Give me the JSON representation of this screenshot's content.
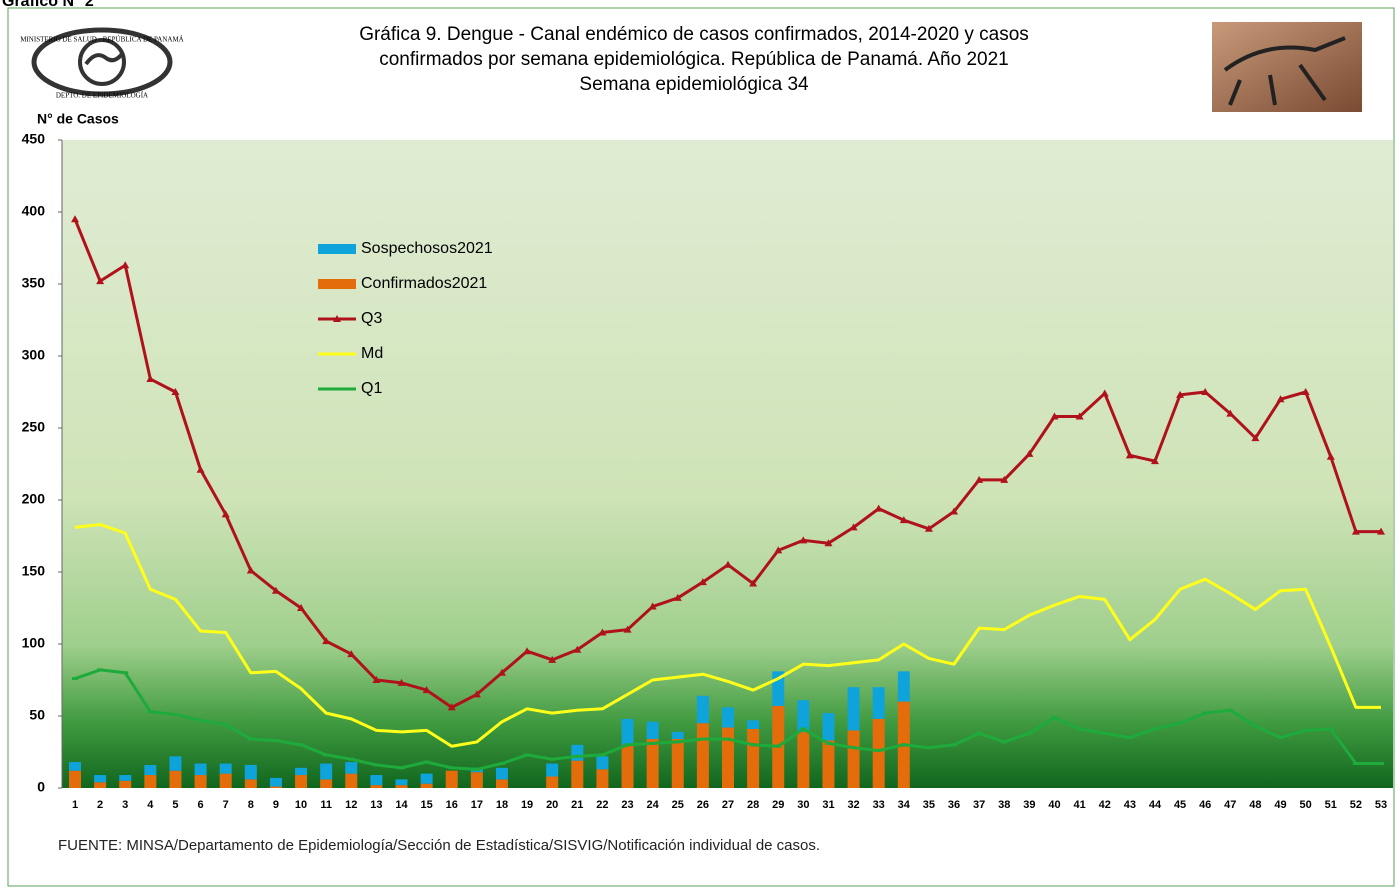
{
  "chart_data": {
    "type": "bar-line",
    "header": "Gráfico N° 2",
    "title": [
      "Gráfica 9. Dengue - Canal endémico de casos confirmados, 2014-2020 y casos",
      "confirmados por semana epidemiológica. República de Panamá. Año 2021",
      "Semana epidemiológica 34"
    ],
    "logo_text": [
      "MINISTERIO DE SALUD - REPÚBLICA DE PANAMÁ",
      "DEPTO. DE EPIDEMIOLOGÍA"
    ],
    "y_label": "N° de Casos",
    "source": "FUENTE:  MINSA/Departamento  de Epidemiología/Sección de Estadística/SISVIG/Notificación individual de casos.",
    "categories": [
      "1",
      "2",
      "3",
      "4",
      "5",
      "6",
      "7",
      "8",
      "9",
      "10",
      "11",
      "12",
      "13",
      "14",
      "15",
      "16",
      "17",
      "18",
      "19",
      "20",
      "21",
      "22",
      "23",
      "24",
      "25",
      "26",
      "27",
      "28",
      "29",
      "30",
      "31",
      "32",
      "33",
      "34",
      "35",
      "36",
      "37",
      "38",
      "39",
      "40",
      "41",
      "42",
      "43",
      "44",
      "45",
      "46",
      "47",
      "48",
      "49",
      "50",
      "51",
      "52",
      "53"
    ],
    "ylim": [
      0,
      450
    ],
    "yticks": [
      0,
      50,
      100,
      150,
      200,
      250,
      300,
      350,
      400,
      450
    ],
    "legend": "upper-left",
    "series": [
      {
        "name": "Sospechosos2021",
        "color": "#0fa3dc",
        "kind": "bar",
        "stack": 1,
        "values": [
          6,
          5,
          4,
          7,
          10,
          8,
          7,
          10,
          6,
          5,
          11,
          8,
          7,
          4,
          7,
          0,
          3,
          8,
          0,
          9,
          11,
          9,
          18,
          12,
          5,
          19,
          14,
          6,
          24,
          22,
          19,
          30,
          22,
          21,
          null,
          null,
          null,
          null,
          null,
          null,
          null,
          null,
          null,
          null,
          null,
          null,
          null,
          null,
          null,
          null,
          null,
          null,
          null
        ]
      },
      {
        "name": "Confirmados2021",
        "color": "#e46c0a",
        "kind": "bar",
        "stack": 0,
        "values": [
          12,
          4,
          5,
          9,
          12,
          9,
          10,
          6,
          1,
          9,
          6,
          10,
          2,
          2,
          3,
          12,
          11,
          6,
          0,
          8,
          19,
          13,
          30,
          34,
          34,
          45,
          42,
          41,
          57,
          39,
          33,
          40,
          48,
          60,
          null,
          null,
          null,
          null,
          null,
          null,
          null,
          null,
          null,
          null,
          null,
          null,
          null,
          null,
          null,
          null,
          null,
          null,
          null
        ]
      },
      {
        "name": "Q3",
        "color": "#b0121b",
        "kind": "line",
        "marker": "triangle",
        "values": [
          395,
          352,
          363,
          284,
          275,
          221,
          190,
          151,
          137,
          125,
          102,
          93,
          75,
          73,
          68,
          56,
          65,
          80,
          95,
          89,
          96,
          108,
          110,
          126,
          132,
          143,
          155,
          142,
          165,
          172,
          170,
          181,
          194,
          186,
          180,
          192,
          214,
          214,
          232,
          258,
          258,
          274,
          231,
          227,
          273,
          275,
          260,
          243,
          270,
          275,
          230,
          178,
          178
        ]
      },
      {
        "name": "Md",
        "color": "#ffff1a",
        "kind": "line",
        "marker": "none",
        "values": [
          181,
          183,
          177,
          138,
          131,
          109,
          108,
          80,
          81,
          69,
          52,
          48,
          40,
          39,
          40,
          29,
          32,
          46,
          55,
          52,
          54,
          55,
          65,
          75,
          77,
          79,
          74,
          68,
          76,
          86,
          85,
          87,
          89,
          100,
          90,
          86,
          111,
          110,
          120,
          127,
          133,
          131,
          103,
          117,
          138,
          145,
          135,
          124,
          137,
          138,
          98,
          56,
          56
        ]
      },
      {
        "name": "Q1",
        "color": "#1faa3c",
        "kind": "line",
        "marker": "dash",
        "values": [
          76,
          82,
          80,
          53,
          51,
          47,
          44,
          34,
          33,
          30,
          23,
          20,
          16,
          14,
          18,
          14,
          13,
          17,
          23,
          20,
          22,
          23,
          30,
          31,
          32,
          34,
          34,
          30,
          29,
          41,
          31,
          28,
          26,
          30,
          28,
          30,
          38,
          32,
          38,
          49,
          41,
          38,
          35,
          41,
          45,
          52,
          54,
          43,
          35,
          40,
          41,
          17,
          17
        ]
      }
    ]
  }
}
